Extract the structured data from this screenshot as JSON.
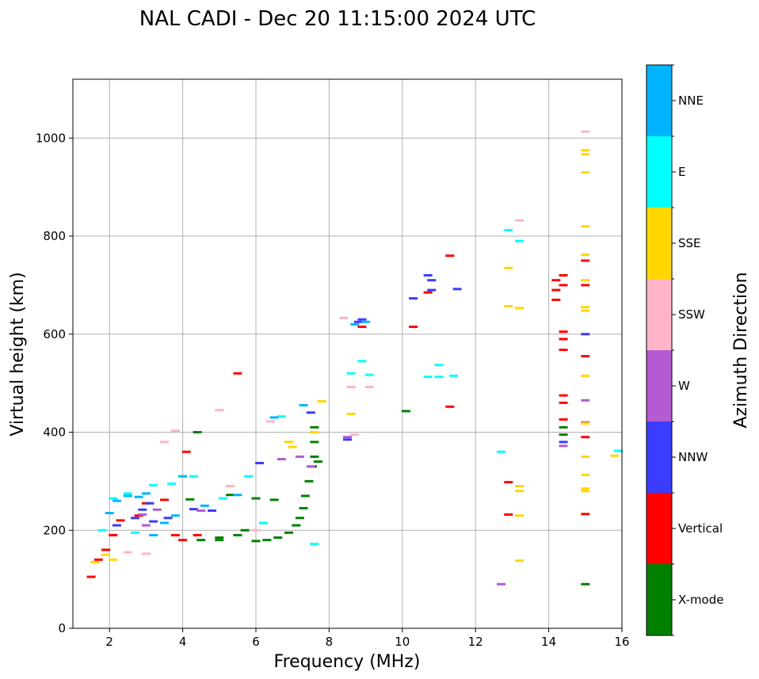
{
  "chart_data": {
    "type": "scatter",
    "title": "NAL CADI - Dec 20 11:15:00 2024 UTC",
    "xlabel": "Frequency (MHz)",
    "ylabel": "Virtual height (km)",
    "xlim": [
      1,
      16
    ],
    "ylim": [
      0,
      1120
    ],
    "xticks": [
      2,
      4,
      6,
      8,
      10,
      12,
      14,
      16
    ],
    "yticks": [
      0,
      200,
      400,
      600,
      800,
      1000
    ],
    "grid": true,
    "colorbar": {
      "label": "Azimuth Direction",
      "categories": [
        {
          "name": "X-mode",
          "color": "#008000"
        },
        {
          "name": "Vertical",
          "color": "#ff0000"
        },
        {
          "name": "NNW",
          "color": "#3c3cff"
        },
        {
          "name": "W",
          "color": "#b45ad2"
        },
        {
          "name": "SSW",
          "color": "#ffb4c8"
        },
        {
          "name": "SSE",
          "color": "#ffd700"
        },
        {
          "name": "E",
          "color": "#00ffff"
        },
        {
          "name": "NNE",
          "color": "#00b4ff"
        }
      ]
    },
    "series": [
      {
        "name": "X-mode",
        "points": [
          [
            4.5,
            180
          ],
          [
            5.0,
            180
          ],
          [
            5.5,
            190
          ],
          [
            6.0,
            178
          ],
          [
            6.3,
            180
          ],
          [
            6.6,
            185
          ],
          [
            6.9,
            195
          ],
          [
            7.1,
            210
          ],
          [
            7.2,
            225
          ],
          [
            7.3,
            245
          ],
          [
            7.35,
            270
          ],
          [
            7.45,
            300
          ],
          [
            7.55,
            330
          ],
          [
            7.6,
            350
          ],
          [
            7.6,
            380
          ],
          [
            7.6,
            410
          ],
          [
            7.7,
            340
          ],
          [
            6.5,
            262
          ],
          [
            6.0,
            265
          ],
          [
            5.3,
            272
          ],
          [
            4.2,
            263
          ],
          [
            4.4,
            400
          ],
          [
            5.0,
            185
          ],
          [
            5.7,
            200
          ],
          [
            10.1,
            443
          ],
          [
            14.4,
            395
          ],
          [
            14.4,
            410
          ],
          [
            15.0,
            90
          ]
        ]
      },
      {
        "name": "Vertical",
        "points": [
          [
            1.5,
            105
          ],
          [
            1.7,
            140
          ],
          [
            1.9,
            160
          ],
          [
            2.1,
            190
          ],
          [
            2.3,
            220
          ],
          [
            2.8,
            230
          ],
          [
            3.0,
            255
          ],
          [
            3.5,
            262
          ],
          [
            3.8,
            190
          ],
          [
            4.0,
            180
          ],
          [
            4.1,
            360
          ],
          [
            4.4,
            190
          ],
          [
            5.5,
            520
          ],
          [
            8.9,
            615
          ],
          [
            10.3,
            615
          ],
          [
            10.7,
            685
          ],
          [
            11.3,
            760
          ],
          [
            11.3,
            452
          ],
          [
            12.9,
            298
          ],
          [
            12.9,
            232
          ],
          [
            14.2,
            710
          ],
          [
            14.2,
            690
          ],
          [
            14.2,
            670
          ],
          [
            14.4,
            720
          ],
          [
            14.4,
            700
          ],
          [
            14.4,
            605
          ],
          [
            14.4,
            590
          ],
          [
            14.4,
            568
          ],
          [
            14.4,
            475
          ],
          [
            14.4,
            460
          ],
          [
            14.4,
            426
          ],
          [
            15.0,
            750
          ],
          [
            15.0,
            700
          ],
          [
            15.0,
            555
          ],
          [
            15.0,
            390
          ],
          [
            15.0,
            233
          ]
        ]
      },
      {
        "name": "NNW",
        "points": [
          [
            2.2,
            210
          ],
          [
            2.7,
            225
          ],
          [
            2.9,
            242
          ],
          [
            3.1,
            255
          ],
          [
            3.2,
            218
          ],
          [
            3.6,
            225
          ],
          [
            4.3,
            243
          ],
          [
            4.8,
            240
          ],
          [
            6.1,
            337
          ],
          [
            7.5,
            440
          ],
          [
            8.5,
            385
          ],
          [
            8.8,
            625
          ],
          [
            8.9,
            630
          ],
          [
            10.3,
            673
          ],
          [
            10.7,
            720
          ],
          [
            10.8,
            710
          ],
          [
            10.8,
            690
          ],
          [
            11.5,
            692
          ],
          [
            14.4,
            380
          ],
          [
            15.0,
            600
          ]
        ]
      },
      {
        "name": "W",
        "points": [
          [
            2.9,
            232
          ],
          [
            3.0,
            210
          ],
          [
            3.3,
            242
          ],
          [
            4.5,
            240
          ],
          [
            6.7,
            345
          ],
          [
            7.2,
            350
          ],
          [
            7.5,
            330
          ],
          [
            8.5,
            390
          ],
          [
            12.7,
            90
          ],
          [
            14.4,
            372
          ],
          [
            15.0,
            465
          ],
          [
            15.0,
            420
          ]
        ]
      },
      {
        "name": "SSW",
        "points": [
          [
            2.5,
            155
          ],
          [
            3.0,
            152
          ],
          [
            3.5,
            380
          ],
          [
            3.8,
            403
          ],
          [
            5.0,
            445
          ],
          [
            5.3,
            290
          ],
          [
            6.0,
            200
          ],
          [
            6.4,
            422
          ],
          [
            8.4,
            633
          ],
          [
            8.6,
            492
          ],
          [
            8.7,
            395
          ],
          [
            9.1,
            492
          ],
          [
            13.2,
            832
          ],
          [
            15.0,
            1013
          ]
        ]
      },
      {
        "name": "SSE",
        "points": [
          [
            1.6,
            135
          ],
          [
            1.9,
            150
          ],
          [
            2.1,
            140
          ],
          [
            6.9,
            380
          ],
          [
            7.0,
            370
          ],
          [
            7.6,
            400
          ],
          [
            7.8,
            463
          ],
          [
            8.6,
            437
          ],
          [
            12.9,
            735
          ],
          [
            12.9,
            657
          ],
          [
            13.2,
            653
          ],
          [
            13.2,
            290
          ],
          [
            13.2,
            280
          ],
          [
            13.2,
            230
          ],
          [
            13.2,
            138
          ],
          [
            15.0,
            975
          ],
          [
            15.0,
            967
          ],
          [
            15.0,
            930
          ],
          [
            15.0,
            820
          ],
          [
            15.0,
            762
          ],
          [
            15.0,
            710
          ],
          [
            15.0,
            655
          ],
          [
            15.0,
            648
          ],
          [
            15.0,
            515
          ],
          [
            15.0,
            418
          ],
          [
            15.0,
            350
          ],
          [
            15.0,
            313
          ],
          [
            15.0,
            285
          ],
          [
            15.0,
            280
          ],
          [
            15.8,
            352
          ]
        ]
      },
      {
        "name": "E",
        "points": [
          [
            1.8,
            200
          ],
          [
            2.1,
            265
          ],
          [
            2.5,
            275
          ],
          [
            2.7,
            195
          ],
          [
            3.2,
            292
          ],
          [
            3.7,
            295
          ],
          [
            4.3,
            310
          ],
          [
            5.1,
            265
          ],
          [
            5.8,
            310
          ],
          [
            6.2,
            215
          ],
          [
            6.7,
            432
          ],
          [
            7.6,
            172
          ],
          [
            8.6,
            520
          ],
          [
            8.9,
            545
          ],
          [
            9.1,
            517
          ],
          [
            10.7,
            513
          ],
          [
            11.0,
            537
          ],
          [
            11.0,
            513
          ],
          [
            11.4,
            515
          ],
          [
            12.7,
            360
          ],
          [
            12.9,
            812
          ],
          [
            13.2,
            790
          ],
          [
            15.9,
            362
          ]
        ]
      },
      {
        "name": "NNE",
        "points": [
          [
            2.0,
            235
          ],
          [
            2.2,
            260
          ],
          [
            2.5,
            270
          ],
          [
            2.8,
            268
          ],
          [
            3.0,
            275
          ],
          [
            3.2,
            190
          ],
          [
            3.5,
            215
          ],
          [
            3.8,
            230
          ],
          [
            4.0,
            310
          ],
          [
            4.6,
            250
          ],
          [
            5.5,
            272
          ],
          [
            6.5,
            430
          ],
          [
            7.3,
            455
          ],
          [
            8.7,
            620
          ],
          [
            9.0,
            625
          ]
        ]
      }
    ]
  }
}
